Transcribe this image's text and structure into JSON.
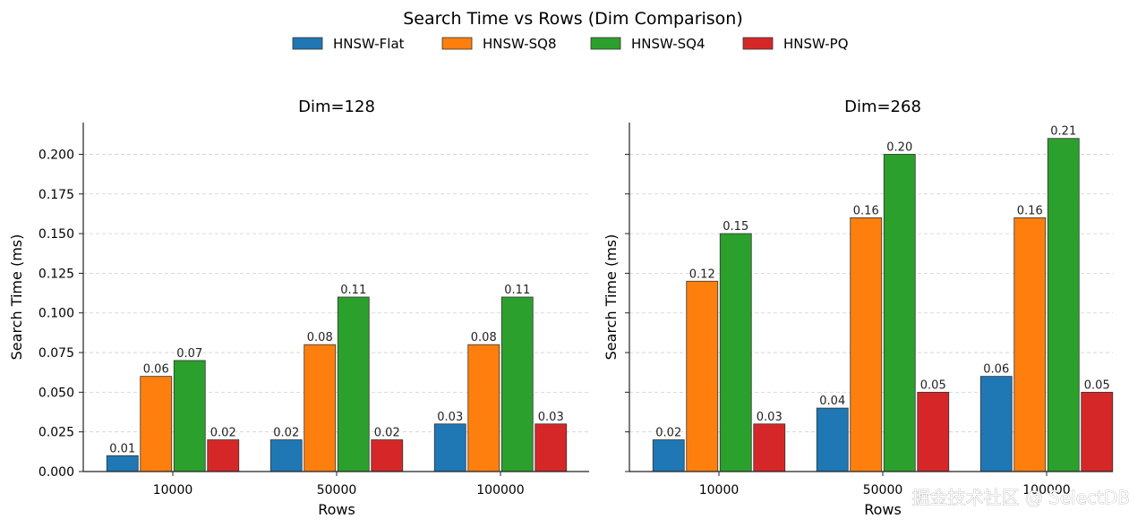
{
  "figure": {
    "suptitle": "Search Time vs Rows (Dim Comparison)",
    "watermark": "掘金技术社区 @ SelectDB"
  },
  "legend": {
    "placement": "top-center",
    "items": [
      {
        "label": "HNSW-Flat",
        "color": "#1f77b4"
      },
      {
        "label": "HNSW-SQ8",
        "color": "#ff7f0e"
      },
      {
        "label": "HNSW-SQ4",
        "color": "#2ca02c"
      },
      {
        "label": "HNSW-PQ",
        "color": "#d62728"
      }
    ]
  },
  "chart_data": [
    {
      "type": "bar",
      "title": "Dim=128",
      "xlabel": "Rows",
      "ylabel": "Search Time (ms)",
      "categories": [
        "10000",
        "50000",
        "100000"
      ],
      "ylim": [
        0,
        0.22
      ],
      "yticks": [
        "0.000",
        "0.025",
        "0.050",
        "0.075",
        "0.100",
        "0.125",
        "0.150",
        "0.175",
        "0.200"
      ],
      "grid": "y-dashed",
      "series": [
        {
          "name": "HNSW-Flat",
          "values": [
            0.01,
            0.02,
            0.03
          ],
          "labels": [
            "0.01",
            "0.02",
            "0.03"
          ]
        },
        {
          "name": "HNSW-SQ8",
          "values": [
            0.06,
            0.08,
            0.08
          ],
          "labels": [
            "0.06",
            "0.08",
            "0.08"
          ]
        },
        {
          "name": "HNSW-SQ4",
          "values": [
            0.07,
            0.11,
            0.11
          ],
          "labels": [
            "0.07",
            "0.11",
            "0.11"
          ]
        },
        {
          "name": "HNSW-PQ",
          "values": [
            0.02,
            0.02,
            0.03
          ],
          "labels": [
            "0.02",
            "0.02",
            "0.03"
          ]
        }
      ]
    },
    {
      "type": "bar",
      "title": "Dim=268",
      "xlabel": "Rows",
      "ylabel": "Search Time (ms)",
      "categories": [
        "10000",
        "50000",
        "100000"
      ],
      "ylim": [
        0,
        0.22
      ],
      "yticks": [],
      "grid": "y-dashed",
      "series": [
        {
          "name": "HNSW-Flat",
          "values": [
            0.02,
            0.04,
            0.06
          ],
          "labels": [
            "0.02",
            "0.04",
            "0.06"
          ]
        },
        {
          "name": "HNSW-SQ8",
          "values": [
            0.12,
            0.16,
            0.16
          ],
          "labels": [
            "0.12",
            "0.16",
            "0.16"
          ]
        },
        {
          "name": "HNSW-SQ4",
          "values": [
            0.15,
            0.2,
            0.21
          ],
          "labels": [
            "0.15",
            "0.20",
            "0.21"
          ]
        },
        {
          "name": "HNSW-PQ",
          "values": [
            0.03,
            0.05,
            0.05
          ],
          "labels": [
            "0.03",
            "0.05",
            "0.05"
          ]
        }
      ]
    }
  ]
}
